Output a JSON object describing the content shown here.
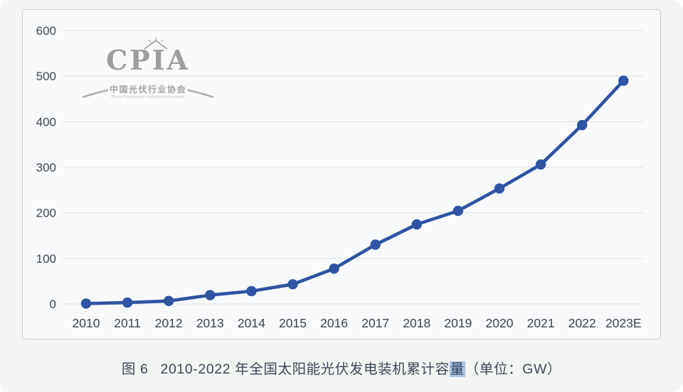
{
  "logo": {
    "acronym": "CPIA",
    "name_cn": "中国光伏行业协会",
    "name_en": "China Photovoltaic Industry Association"
  },
  "caption": {
    "figure_label": "图 6",
    "title_before_highlight": "2010-2022 年全国太阳能光伏发电装机累计容",
    "highlighted_char": "量",
    "suffix": "（单位：GW）"
  },
  "chart_data": {
    "type": "line",
    "title": "2010-2022 年全国太阳能光伏发电装机累计容量",
    "unit": "GW",
    "categories": [
      "2010",
      "2011",
      "2012",
      "2013",
      "2014",
      "2015",
      "2016",
      "2017",
      "2018",
      "2019",
      "2020",
      "2021",
      "2022",
      "2023E"
    ],
    "values": [
      0.9,
      3.0,
      6.5,
      19.4,
      28.1,
      43.2,
      77.4,
      130.2,
      174.5,
      204.3,
      253.4,
      306.0,
      392.6,
      490.0
    ],
    "ylim": [
      0,
      600
    ],
    "ytick_step": 100,
    "yticks": [
      0,
      100,
      200,
      300,
      400,
      500,
      600
    ],
    "grid": "horizontal-only",
    "legend": "none",
    "line_color": "#2e54a3",
    "marker": "circle",
    "gridline_color": "#e3e7ea"
  }
}
